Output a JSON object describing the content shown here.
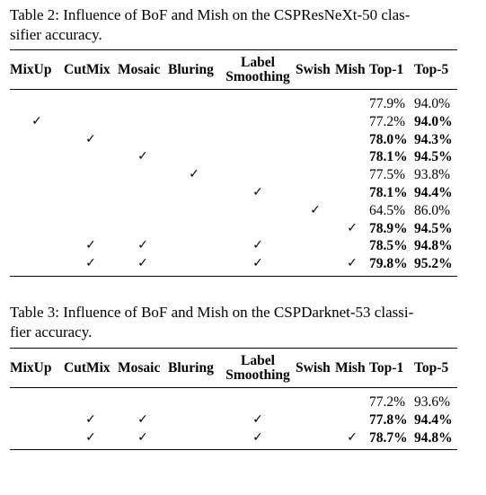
{
  "table2": {
    "caption": "Table 2: Influence of BoF and Mish on the CSPResNeXt-50 classifier accuracy.",
    "caption_line1": "Table 2: Influence of BoF and Mish on the CSPResNeXt-50 clas-",
    "caption_line2": "sifier accuracy.",
    "headers": {
      "mixup": "MixUp",
      "cutmix": "CutMix",
      "mosaic": "Mosaic",
      "bluring": "Bluring",
      "label_line1": "Label",
      "label_line2": "Smoothing",
      "swish": "Swish",
      "mish": "Mish",
      "top1": "Top-1",
      "top5": "Top-5"
    },
    "rows": [
      {
        "mixup": "",
        "cutmix": "",
        "mosaic": "",
        "bluring": "",
        "label": "",
        "swish": "",
        "mish": "",
        "top1": "77.9%",
        "top5": "94.0%",
        "top1_bold": false,
        "top5_bold": false
      },
      {
        "mixup": "✓",
        "cutmix": "",
        "mosaic": "",
        "bluring": "",
        "label": "",
        "swish": "",
        "mish": "",
        "top1": "77.2%",
        "top5": "94.0%",
        "top1_bold": false,
        "top5_bold": true
      },
      {
        "mixup": "",
        "cutmix": "✓",
        "mosaic": "",
        "bluring": "",
        "label": "",
        "swish": "",
        "mish": "",
        "top1": "78.0%",
        "top5": "94.3%",
        "top1_bold": true,
        "top5_bold": true
      },
      {
        "mixup": "",
        "cutmix": "",
        "mosaic": "✓",
        "bluring": "",
        "label": "",
        "swish": "",
        "mish": "",
        "top1": "78.1%",
        "top5": "94.5%",
        "top1_bold": true,
        "top5_bold": true
      },
      {
        "mixup": "",
        "cutmix": "",
        "mosaic": "",
        "bluring": "✓",
        "label": "",
        "swish": "",
        "mish": "",
        "top1": "77.5%",
        "top5": "93.8%",
        "top1_bold": false,
        "top5_bold": false
      },
      {
        "mixup": "",
        "cutmix": "",
        "mosaic": "",
        "bluring": "",
        "label": "✓",
        "swish": "",
        "mish": "",
        "top1": "78.1%",
        "top5": "94.4%",
        "top1_bold": true,
        "top5_bold": true
      },
      {
        "mixup": "",
        "cutmix": "",
        "mosaic": "",
        "bluring": "",
        "label": "",
        "swish": "✓",
        "mish": "",
        "top1": "64.5%",
        "top5": "86.0%",
        "top1_bold": false,
        "top5_bold": false
      },
      {
        "mixup": "",
        "cutmix": "",
        "mosaic": "",
        "bluring": "",
        "label": "",
        "swish": "",
        "mish": "✓",
        "top1": "78.9%",
        "top5": "94.5%",
        "top1_bold": true,
        "top5_bold": true
      },
      {
        "mixup": "",
        "cutmix": "✓",
        "mosaic": "✓",
        "bluring": "",
        "label": "✓",
        "swish": "",
        "mish": "",
        "top1": "78.5%",
        "top5": "94.8%",
        "top1_bold": true,
        "top5_bold": true
      },
      {
        "mixup": "",
        "cutmix": "✓",
        "mosaic": "✓",
        "bluring": "",
        "label": "✓",
        "swish": "",
        "mish": "✓",
        "top1": "79.8%",
        "top5": "95.2%",
        "top1_bold": true,
        "top5_bold": true
      }
    ]
  },
  "table3": {
    "caption": "Table 3: Influence of BoF and Mish on the CSPDarknet-53 classifier accuracy.",
    "caption_line1": "Table 3: Influence of BoF and Mish on the CSPDarknet-53 classi-",
    "caption_line2": "fier accuracy.",
    "headers": {
      "mixup": "MixUp",
      "cutmix": "CutMix",
      "mosaic": "Mosaic",
      "bluring": "Bluring",
      "label_line1": "Label",
      "label_line2": "Smoothing",
      "swish": "Swish",
      "mish": "Mish",
      "top1": "Top-1",
      "top5": "Top-5"
    },
    "rows": [
      {
        "mixup": "",
        "cutmix": "",
        "mosaic": "",
        "bluring": "",
        "label": "",
        "swish": "",
        "mish": "",
        "top1": "77.2%",
        "top5": "93.6%",
        "top1_bold": false,
        "top5_bold": false
      },
      {
        "mixup": "",
        "cutmix": "✓",
        "mosaic": "✓",
        "bluring": "",
        "label": "✓",
        "swish": "",
        "mish": "",
        "top1": "77.8%",
        "top5": "94.4%",
        "top1_bold": true,
        "top5_bold": true
      },
      {
        "mixup": "",
        "cutmix": "✓",
        "mosaic": "✓",
        "bluring": "",
        "label": "✓",
        "swish": "",
        "mish": "✓",
        "top1": "78.7%",
        "top5": "94.8%",
        "top1_bold": true,
        "top5_bold": true
      }
    ]
  }
}
